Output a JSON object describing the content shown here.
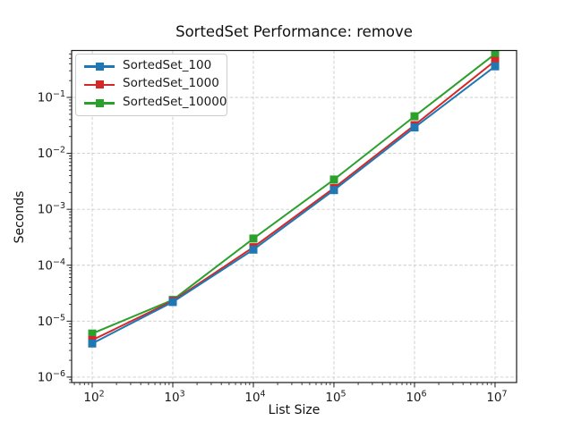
{
  "title": "SortedSet Performance: remove",
  "xlabel": "List Size",
  "ylabel": "Seconds",
  "chart_data": {
    "type": "line",
    "title": "SortedSet Performance: remove",
    "xlabel": "List Size",
    "ylabel": "Seconds",
    "x_scale": "log",
    "y_scale": "log",
    "x": [
      100,
      1000,
      10000,
      100000,
      1000000,
      10000000
    ],
    "series": [
      {
        "name": "SortedSet_100",
        "color": "#1f77b4",
        "values": [
          4e-06,
          2.2e-05,
          0.00019,
          0.0022,
          0.029,
          0.36
        ]
      },
      {
        "name": "SortedSet_1000",
        "color": "#d62728",
        "values": [
          4.6e-06,
          2.3e-05,
          0.00021,
          0.0024,
          0.032,
          0.45
        ]
      },
      {
        "name": "SortedSet_10000",
        "color": "#2ca02c",
        "values": [
          6e-06,
          2.4e-05,
          0.0003,
          0.0034,
          0.046,
          0.6
        ]
      }
    ],
    "xlim": [
      55.5,
      18500000.0
    ],
    "ylim": [
      8e-07,
      0.69
    ],
    "x_tick_exponents": [
      2,
      3,
      4,
      5,
      6,
      7
    ],
    "y_tick_exponents": [
      -6,
      -5,
      -4,
      -3,
      -2,
      -1
    ],
    "grid": true,
    "grid_style": "dashed",
    "legend_position": "upper left",
    "marker": "square",
    "colors": {
      "grid": "#cccccc",
      "spine": "#1a1a1a",
      "text": "#1a1a1a"
    }
  }
}
